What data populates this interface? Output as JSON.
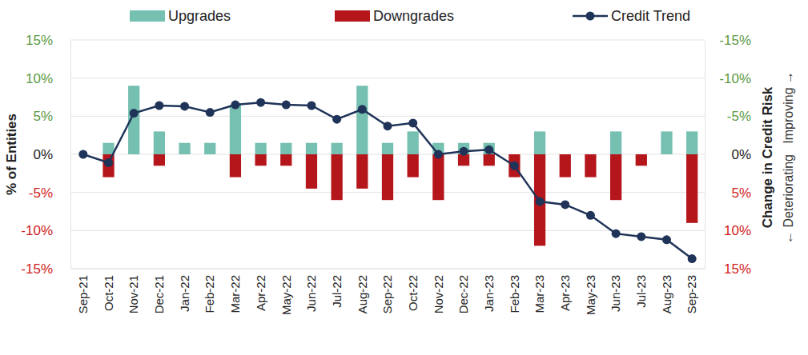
{
  "chart_data": {
    "type": "bar",
    "y_label": "% of Entities",
    "y2_label": "Change in Credit Risk",
    "y2_sublabel": "← Deteriorating   Improving →",
    "categories": [
      "Sep-21",
      "Oct-21",
      "Nov-21",
      "Dec-21",
      "Jan-22",
      "Feb-22",
      "Mar-22",
      "Apr-22",
      "May-22",
      "Jun-22",
      "Jul-22",
      "Aug-22",
      "Sep-22",
      "Oct-22",
      "Nov-22",
      "Dec-22",
      "Jan-23",
      "Feb-23",
      "Mar-23",
      "Apr-23",
      "May-23",
      "Jun-23",
      "Jul-23",
      "Aug-23",
      "Sep-23"
    ],
    "series": [
      {
        "name": "Upgrades",
        "type": "bar",
        "color": "#76c0b1",
        "values": [
          0,
          1.5,
          9,
          3,
          1.5,
          1.5,
          6.5,
          1.5,
          1.5,
          1.5,
          1.5,
          9,
          1.5,
          3,
          1.5,
          1.5,
          1.5,
          0,
          3,
          0,
          0,
          3,
          0,
          3,
          3
        ]
      },
      {
        "name": "Downgrades",
        "type": "bar",
        "color": "#b5161b",
        "values": [
          0,
          -3,
          0,
          -1.5,
          0,
          0,
          -3,
          -1.5,
          -1.5,
          -4.5,
          -6,
          -4.5,
          -6,
          -3,
          -6,
          -1.5,
          -1.5,
          -3,
          -12,
          -3,
          -3,
          -6,
          -1.5,
          0,
          -9
        ]
      },
      {
        "name": "Credit Trend",
        "type": "line",
        "axis": "y2",
        "color": "#1f3458",
        "marker": "circle",
        "values": [
          0,
          1.1,
          -5.4,
          -6.4,
          -6.3,
          -5.5,
          -6.5,
          -6.8,
          -6.5,
          -6.4,
          -4.6,
          -5.9,
          -3.7,
          -4.1,
          0,
          -0.4,
          -0.6,
          1.5,
          6.2,
          6.6,
          8.0,
          10.4,
          10.8,
          11.2,
          13.7
        ]
      }
    ],
    "ylim": [
      -15,
      15
    ],
    "yticks": [
      {
        "value": -15,
        "label": "-15%"
      },
      {
        "value": -10,
        "label": "-10%"
      },
      {
        "value": -5,
        "label": "-5%"
      },
      {
        "value": 0,
        "label": "0%"
      },
      {
        "value": 5,
        "label": "5%"
      },
      {
        "value": 10,
        "label": "10%"
      },
      {
        "value": 15,
        "label": "15%"
      }
    ],
    "y2lim": [
      15,
      -15
    ],
    "y2ticks": [
      {
        "value": 15,
        "label": "15%"
      },
      {
        "value": 10,
        "label": "10%"
      },
      {
        "value": 5,
        "label": "5%"
      },
      {
        "value": 0,
        "label": "0%"
      },
      {
        "value": -5,
        "label": "-5%"
      },
      {
        "value": -10,
        "label": "-10%"
      },
      {
        "value": -15,
        "label": "-15%"
      }
    ],
    "grid": true,
    "legend": "top"
  }
}
